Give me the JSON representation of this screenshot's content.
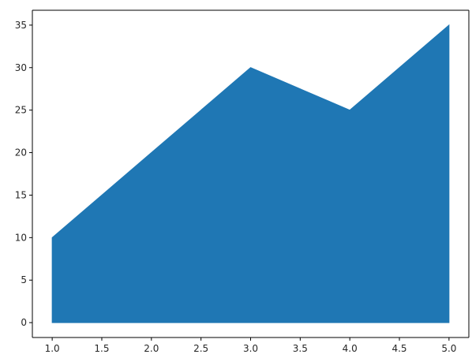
{
  "chart_data": {
    "type": "area",
    "title": "",
    "xlabel": "",
    "ylabel": "",
    "x": [
      1,
      2,
      3,
      4,
      5
    ],
    "series": [
      {
        "values": [
          10,
          20,
          30,
          25,
          35
        ],
        "color": "#1f77b4"
      }
    ],
    "baseline": 0,
    "xlim": [
      0.8,
      5.2
    ],
    "ylim": [
      -1.75,
      36.75
    ],
    "xticks": [
      1.0,
      1.5,
      2.0,
      2.5,
      3.0,
      3.5,
      4.0,
      4.5,
      5.0
    ],
    "xtick_labels": [
      "1.0",
      "1.5",
      "2.0",
      "2.5",
      "3.0",
      "3.5",
      "4.0",
      "4.5",
      "5.0"
    ],
    "yticks": [
      0,
      5,
      10,
      15,
      20,
      25,
      30,
      35
    ],
    "ytick_labels": [
      "0",
      "5",
      "10",
      "15",
      "20",
      "25",
      "30",
      "35"
    ],
    "grid": false,
    "legend": "none"
  }
}
